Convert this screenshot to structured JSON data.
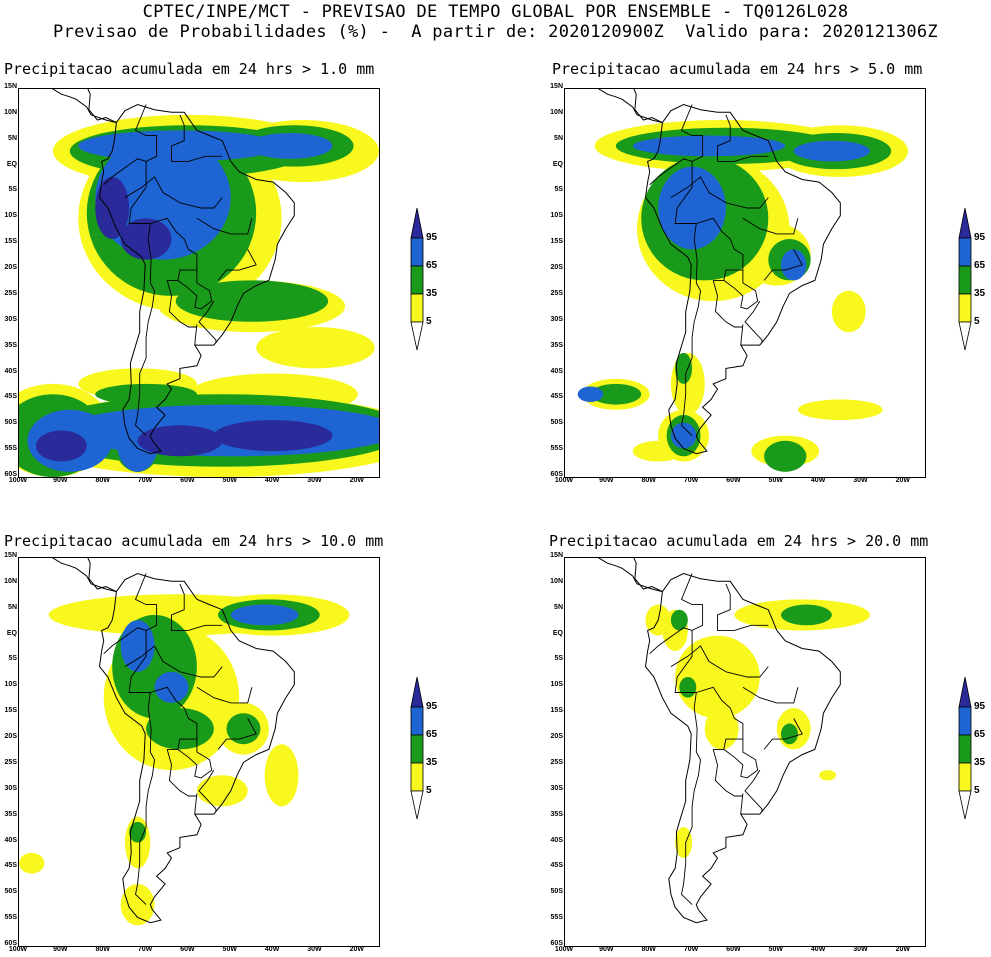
{
  "header": {
    "line1": "CPTEC/INPE/MCT - PREVISAO DE TEMPO GLOBAL POR ENSEMBLE - TQ0126L028",
    "line2": "Previsao de Probabilidades (%) -  A partir de: 2020120900Z  Valido para: 2020121306Z"
  },
  "lat_labels": [
    "15N",
    "10N",
    "5N",
    "EQ",
    "5S",
    "10S",
    "15S",
    "20S",
    "25S",
    "30S",
    "35S",
    "40S",
    "45S",
    "50S",
    "55S",
    "60S"
  ],
  "lon_labels": [
    "100W",
    "90W",
    "80W",
    "70W",
    "60W",
    "50W",
    "40W",
    "30W",
    "20W"
  ],
  "legend": {
    "levels": [
      "95",
      "65",
      "35",
      "5"
    ],
    "colors": {
      "c95": "#2a2a9a",
      "c65": "#1e64d2",
      "c35": "#1a9a1a",
      "c5": "#f8f81e",
      "land": "#000000"
    }
  },
  "panels": [
    {
      "title": "Precipitacao acumulada em 24 hrs > 1.0 mm",
      "threshold_mm": 1.0
    },
    {
      "title": "Precipitacao acumulada em 24 hrs > 5.0 mm",
      "threshold_mm": 5.0
    },
    {
      "title": "Precipitacao acumulada em 24 hrs > 10.0 mm",
      "threshold_mm": 10.0
    },
    {
      "title": "Precipitacao acumulada em 24 hrs > 20.0 mm",
      "threshold_mm": 20.0
    }
  ]
}
